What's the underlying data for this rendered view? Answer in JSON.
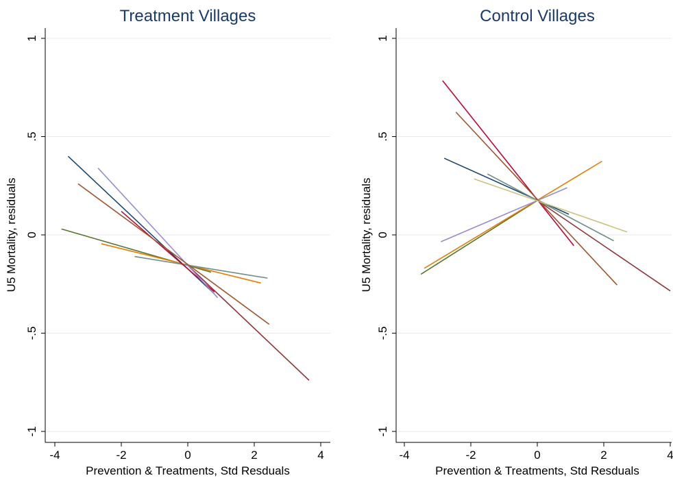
{
  "chart_data": [
    {
      "type": "line",
      "title": "Treatment Villages",
      "xlabel": "Prevention & Treatments, Std Resduals",
      "ylabel": "U5 Mortality, residuals",
      "xlim": [
        -4,
        4
      ],
      "ylim": [
        -1,
        1
      ],
      "xticks": [
        "-4",
        "-2",
        "0",
        "2",
        "4"
      ],
      "yticks": [
        "-1",
        "-.5",
        "0",
        ".5",
        "1"
      ],
      "xtick_values": [
        -4,
        -2,
        0,
        2,
        4
      ],
      "ytick_values": [
        -1,
        -0.5,
        0,
        0.5,
        1
      ],
      "grid": true,
      "series": [
        {
          "color": "#1a476f",
          "x": [
            -3.6,
            0.8
          ],
          "y": [
            0.4,
            -0.3
          ]
        },
        {
          "color": "#90353b",
          "x": [
            0.0,
            3.65
          ],
          "y": [
            -0.155,
            -0.74
          ]
        },
        {
          "color": "#55752f",
          "x": [
            -3.8,
            0.7
          ],
          "y": [
            0.03,
            -0.19
          ]
        },
        {
          "color": "#e37e00",
          "x": [
            -2.6,
            2.2
          ],
          "y": [
            -0.045,
            -0.245
          ]
        },
        {
          "color": "#6e8e84",
          "x": [
            -1.6,
            2.4
          ],
          "y": [
            -0.11,
            -0.22
          ]
        },
        {
          "color": "#c10534",
          "x": [
            -2.0,
            0.8
          ],
          "y": [
            0.12,
            -0.29
          ]
        },
        {
          "color": "#938dd2",
          "x": [
            -2.7,
            0.9
          ],
          "y": [
            0.34,
            -0.32
          ]
        },
        {
          "color": "#a0522d",
          "x": [
            -3.3,
            2.45
          ],
          "y": [
            0.26,
            -0.455
          ]
        }
      ]
    },
    {
      "type": "line",
      "title": "Control Villages",
      "xlabel": "Prevention & Treatments, Std Resduals",
      "ylabel": "U5 Mortality, residuals",
      "xlim": [
        -4,
        4
      ],
      "ylim": [
        -1,
        1
      ],
      "xticks": [
        "-4",
        "-2",
        "0",
        "2",
        "4"
      ],
      "yticks": [
        "-1",
        "-.5",
        "0",
        ".5",
        "1"
      ],
      "xtick_values": [
        -4,
        -2,
        0,
        2,
        4
      ],
      "ytick_values": [
        -1,
        -0.5,
        0,
        0.5,
        1
      ],
      "grid": true,
      "series": [
        {
          "color": "#1a476f",
          "x": [
            -2.8,
            0.95
          ],
          "y": [
            0.39,
            0.105
          ]
        },
        {
          "color": "#90353b",
          "x": [
            0.0,
            4.0
          ],
          "y": [
            0.175,
            -0.285
          ]
        },
        {
          "color": "#55752f",
          "x": [
            -3.5,
            0.0
          ],
          "y": [
            -0.2,
            0.175
          ]
        },
        {
          "color": "#e37e00",
          "x": [
            -3.4,
            1.95
          ],
          "y": [
            -0.17,
            0.375
          ]
        },
        {
          "color": "#6e8e84",
          "x": [
            -1.5,
            2.3
          ],
          "y": [
            0.31,
            -0.03
          ]
        },
        {
          "color": "#c10534",
          "x": [
            -2.85,
            1.1
          ],
          "y": [
            0.785,
            -0.055
          ]
        },
        {
          "color": "#938dd2",
          "x": [
            -2.9,
            0.9
          ],
          "y": [
            -0.035,
            0.24
          ]
        },
        {
          "color": "#a0522d",
          "x": [
            -2.45,
            2.4
          ],
          "y": [
            0.625,
            -0.255
          ]
        },
        {
          "color": "#cac27e",
          "x": [
            -1.9,
            2.7
          ],
          "y": [
            0.285,
            0.015
          ]
        }
      ]
    }
  ]
}
